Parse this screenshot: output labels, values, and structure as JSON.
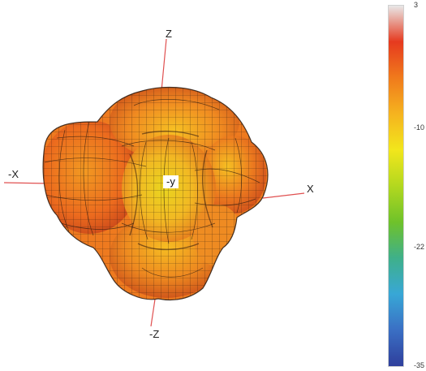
{
  "axes": {
    "z_label": "Z",
    "neg_z_label": "-Z",
    "neg_x_label": "-X",
    "x_label": "X",
    "neg_y_label": "-y"
  },
  "colorbar": {
    "ticks": [
      "3",
      "-10",
      "-22",
      "-35"
    ],
    "stops": [
      "#e8e8e8",
      "#e63a1f",
      "#f07a1c",
      "#f5b31f",
      "#f2e61c",
      "#b3d81f",
      "#6fc22a",
      "#3fb08a",
      "#38a7d6",
      "#3a6fc4",
      "#2f3f9c"
    ]
  },
  "surface": {
    "palette": [
      "#e2471c",
      "#ec6b1e",
      "#f29a22",
      "#f6c023",
      "#e9d51f",
      "#c9cf24"
    ],
    "mesh_color": "#2a1a10"
  },
  "axis_line_color": "#e05050"
}
